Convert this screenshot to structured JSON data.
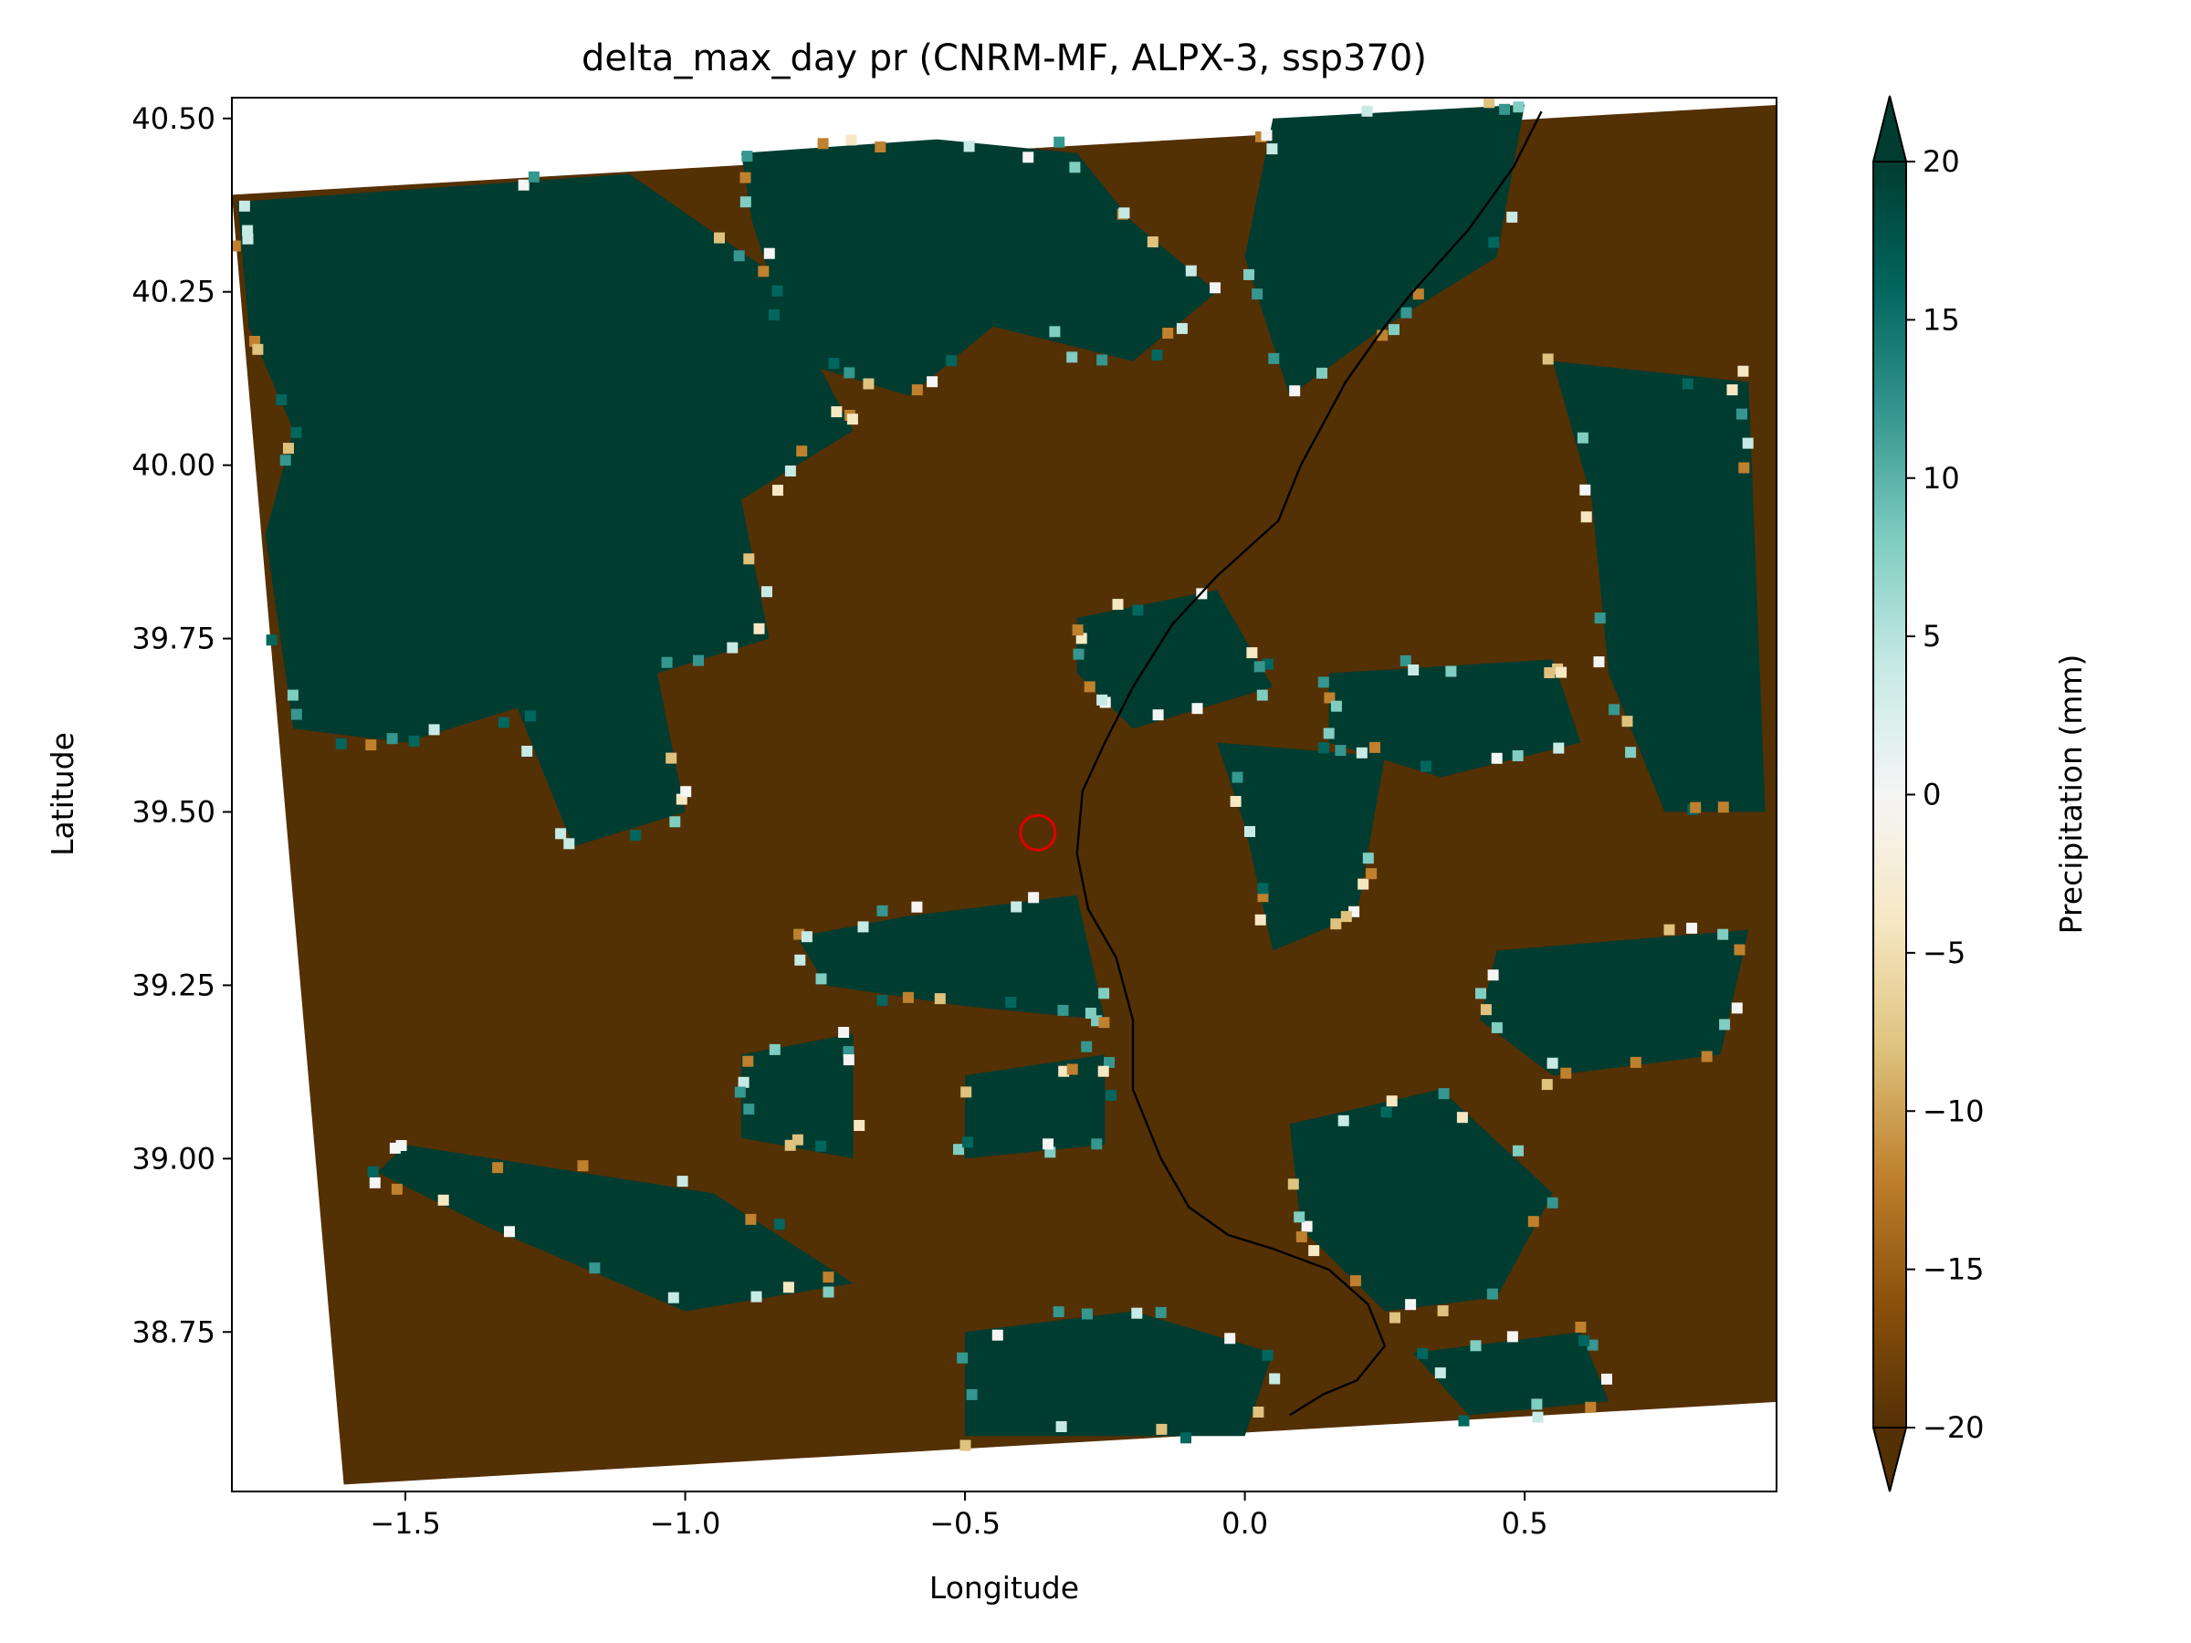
{
  "chart_data": {
    "type": "heatmap",
    "title": "delta_max_day pr (CNRM-MF, ALPX-3, ssp370)",
    "xlabel": "Longitude",
    "ylabel": "Latitude",
    "xlim": [
      -1.81,
      0.95
    ],
    "ylim": [
      38.52,
      40.53
    ],
    "x_ticks": [
      -1.5,
      -1.0,
      -0.5,
      0.0,
      0.5
    ],
    "x_tick_labels": [
      "−1.5",
      "−1.0",
      "−0.5",
      "0.0",
      "0.5"
    ],
    "y_ticks": [
      38.75,
      39.0,
      39.25,
      39.5,
      39.75,
      40.0,
      40.25,
      40.5
    ],
    "y_tick_labels": [
      "38.75",
      "39.00",
      "39.25",
      "39.50",
      "39.75",
      "40.00",
      "40.25",
      "40.50"
    ],
    "grid": false,
    "colormap": "BrBG",
    "colormap_stops": [
      "#543005",
      "#8c510a",
      "#bf812d",
      "#dfc27d",
      "#f6e8c3",
      "#f5f5f5",
      "#c7eae5",
      "#80cdc1",
      "#35978f",
      "#01665e",
      "#003c30"
    ],
    "colorbar": {
      "label": "Precipitation (mm)",
      "vmin": -20,
      "vmax": 20,
      "extend": "both",
      "ticks": [
        -20,
        -15,
        -10,
        -5,
        0,
        5,
        10,
        15,
        20
      ],
      "tick_labels": [
        "−20",
        "−15",
        "−10",
        "−5",
        "0",
        "5",
        "10",
        "15",
        "20"
      ]
    },
    "domain_corners_lonlat": [
      [
        -1.81,
        40.39
      ],
      [
        0.96,
        40.52
      ],
      [
        0.97,
        38.65
      ],
      [
        -1.61,
        38.53
      ]
    ],
    "dominant_values": {
      "wet": 20,
      "dry": -20
    },
    "wet_regions_lonlat": [
      [
        [
          -1.8,
          40.38
        ],
        [
          -1.1,
          40.42
        ],
        [
          -0.85,
          40.28
        ],
        [
          -0.7,
          40.05
        ],
        [
          -0.9,
          39.95
        ],
        [
          -0.85,
          39.75
        ],
        [
          -1.05,
          39.7
        ],
        [
          -1.0,
          39.5
        ],
        [
          -1.2,
          39.45
        ],
        [
          -1.3,
          39.65
        ],
        [
          -1.5,
          39.6
        ],
        [
          -1.7,
          39.62
        ],
        [
          -1.75,
          39.9
        ],
        [
          -1.7,
          40.05
        ],
        [
          -1.78,
          40.2
        ]
      ],
      [
        [
          -0.9,
          40.45
        ],
        [
          -0.55,
          40.47
        ],
        [
          -0.3,
          40.45
        ],
        [
          -0.2,
          40.35
        ],
        [
          -0.05,
          40.25
        ],
        [
          -0.2,
          40.15
        ],
        [
          -0.45,
          40.2
        ],
        [
          -0.6,
          40.1
        ],
        [
          -0.8,
          40.15
        ],
        [
          -0.88,
          40.35
        ]
      ],
      [
        [
          0.05,
          40.5
        ],
        [
          0.5,
          40.52
        ],
        [
          0.45,
          40.3
        ],
        [
          0.25,
          40.2
        ],
        [
          0.08,
          40.1
        ],
        [
          0.0,
          40.3
        ]
      ],
      [
        [
          0.55,
          40.15
        ],
        [
          0.9,
          40.12
        ],
        [
          0.93,
          39.5
        ],
        [
          0.75,
          39.5
        ],
        [
          0.65,
          39.7
        ],
        [
          0.62,
          39.95
        ]
      ],
      [
        [
          -0.3,
          39.78
        ],
        [
          -0.05,
          39.82
        ],
        [
          0.05,
          39.68
        ],
        [
          -0.2,
          39.62
        ],
        [
          -0.3,
          39.7
        ]
      ],
      [
        [
          0.15,
          39.7
        ],
        [
          0.55,
          39.72
        ],
        [
          0.6,
          39.6
        ],
        [
          0.35,
          39.55
        ],
        [
          0.15,
          39.6
        ]
      ],
      [
        [
          -0.05,
          39.6
        ],
        [
          0.25,
          39.58
        ],
        [
          0.2,
          39.35
        ],
        [
          0.05,
          39.3
        ],
        [
          0.0,
          39.48
        ]
      ],
      [
        [
          -0.6,
          39.35
        ],
        [
          -0.3,
          39.38
        ],
        [
          -0.25,
          39.2
        ],
        [
          -0.5,
          39.22
        ],
        [
          -0.75,
          39.25
        ],
        [
          -0.8,
          39.32
        ]
      ],
      [
        [
          -0.9,
          39.15
        ],
        [
          -0.7,
          39.18
        ],
        [
          -0.7,
          39.0
        ],
        [
          -0.9,
          39.03
        ]
      ],
      [
        [
          -0.5,
          39.12
        ],
        [
          -0.25,
          39.15
        ],
        [
          -0.25,
          39.02
        ],
        [
          -0.5,
          39.0
        ]
      ],
      [
        [
          0.08,
          39.05
        ],
        [
          0.35,
          39.1
        ],
        [
          0.55,
          38.95
        ],
        [
          0.45,
          38.8
        ],
        [
          0.25,
          38.78
        ],
        [
          0.1,
          38.9
        ]
      ],
      [
        [
          0.45,
          39.3
        ],
        [
          0.9,
          39.33
        ],
        [
          0.85,
          39.15
        ],
        [
          0.55,
          39.12
        ],
        [
          0.42,
          39.2
        ]
      ],
      [
        [
          -1.5,
          39.02
        ],
        [
          -0.95,
          38.95
        ],
        [
          -0.7,
          38.82
        ],
        [
          -1.0,
          38.78
        ],
        [
          -1.35,
          38.9
        ],
        [
          -1.55,
          38.98
        ]
      ],
      [
        [
          -0.5,
          38.75
        ],
        [
          -0.2,
          38.78
        ],
        [
          0.05,
          38.72
        ],
        [
          0.0,
          38.6
        ],
        [
          -0.5,
          38.6
        ]
      ],
      [
        [
          0.3,
          38.72
        ],
        [
          0.6,
          38.75
        ],
        [
          0.65,
          38.65
        ],
        [
          0.4,
          38.63
        ]
      ]
    ],
    "point_marker": {
      "lon": -0.37,
      "lat": 39.47,
      "style": "open red circle"
    },
    "boundary_line": {
      "description": "thin black administrative boundary",
      "points": [
        [
          0.53,
          40.51
        ],
        [
          0.48,
          40.43
        ],
        [
          0.4,
          40.34
        ],
        [
          0.3,
          40.25
        ],
        [
          0.25,
          40.2
        ],
        [
          0.18,
          40.12
        ],
        [
          0.1,
          40.0
        ],
        [
          0.06,
          39.92
        ],
        [
          -0.05,
          39.84
        ],
        [
          -0.13,
          39.77
        ],
        [
          -0.2,
          39.68
        ],
        [
          -0.25,
          39.6
        ],
        [
          -0.29,
          39.53
        ],
        [
          -0.3,
          39.44
        ],
        [
          -0.28,
          39.36
        ],
        [
          -0.23,
          39.29
        ],
        [
          -0.2,
          39.2
        ],
        [
          -0.2,
          39.1
        ],
        [
          -0.15,
          39.0
        ],
        [
          -0.1,
          38.93
        ],
        [
          -0.03,
          38.89
        ],
        [
          0.05,
          38.87
        ],
        [
          0.15,
          38.84
        ],
        [
          0.22,
          38.79
        ],
        [
          0.25,
          38.73
        ],
        [
          0.2,
          38.68
        ],
        [
          0.14,
          38.66
        ],
        [
          0.08,
          38.63
        ]
      ]
    }
  }
}
